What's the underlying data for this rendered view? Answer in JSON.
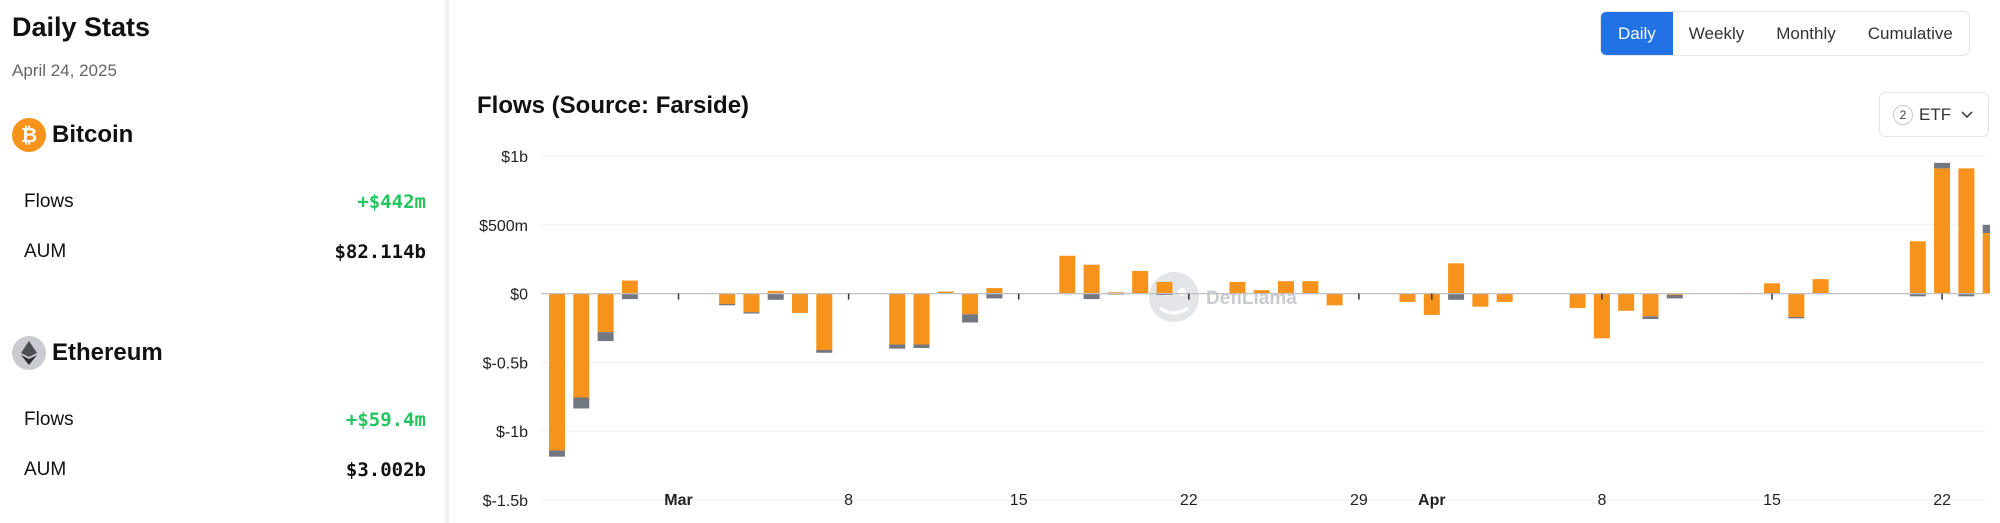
{
  "summary": {
    "title": "Daily Stats",
    "date": "April 24, 2025",
    "assets": [
      {
        "name": "Bitcoin",
        "icon": "bitcoin-icon",
        "icon_color": "#f7931a",
        "flows_label": "Flows",
        "flows_value": "+$442m",
        "aum_label": "AUM",
        "aum_value": "$82.114b"
      },
      {
        "name": "Ethereum",
        "icon": "ethereum-icon",
        "icon_color": "#8a8d93",
        "flows_label": "Flows",
        "flows_value": "+$59.4m",
        "aum_label": "AUM",
        "aum_value": "$3.002b"
      }
    ]
  },
  "controls": {
    "toggles": [
      "Daily",
      "Weekly",
      "Monthly",
      "Cumulative"
    ],
    "active_toggle": "Daily",
    "etf_filter": {
      "count": "2",
      "label": "ETF"
    }
  },
  "colors": {
    "accent": "#2172e5",
    "bitcoin_series": "#f7931a",
    "ethereum_series": "#727781",
    "positive": "#22c55e"
  },
  "watermark": "DefiLlama",
  "chart_data": {
    "type": "bar",
    "stacked": true,
    "title": "Flows (Source: Farside)",
    "y_unit": "USD millions",
    "ylim": [
      -1500,
      1000
    ],
    "y_ticks": [
      1000,
      500,
      0,
      -500,
      -1000,
      -1500
    ],
    "y_tick_labels": [
      "$1b",
      "$500m",
      "$0",
      "$-0.5b",
      "$-1b",
      "$-1.5b"
    ],
    "x_ticks": [
      {
        "date": "2025-03-01",
        "label": "Mar",
        "bold": true
      },
      {
        "date": "2025-03-08",
        "label": "8",
        "bold": false
      },
      {
        "date": "2025-03-15",
        "label": "15",
        "bold": false
      },
      {
        "date": "2025-03-22",
        "label": "22",
        "bold": false
      },
      {
        "date": "2025-03-29",
        "label": "29",
        "bold": false
      },
      {
        "date": "2025-04-01",
        "label": "Apr",
        "bold": true
      },
      {
        "date": "2025-04-08",
        "label": "8",
        "bold": false
      },
      {
        "date": "2025-04-15",
        "label": "15",
        "bold": false
      },
      {
        "date": "2025-04-22",
        "label": "22",
        "bold": false
      }
    ],
    "x": [
      "2025-02-24",
      "2025-02-25",
      "2025-02-26",
      "2025-02-27",
      "2025-03-03",
      "2025-03-04",
      "2025-03-05",
      "2025-03-06",
      "2025-03-07",
      "2025-03-10",
      "2025-03-11",
      "2025-03-12",
      "2025-03-13",
      "2025-03-14",
      "2025-03-17",
      "2025-03-18",
      "2025-03-19",
      "2025-03-20",
      "2025-03-21",
      "2025-03-24",
      "2025-03-25",
      "2025-03-26",
      "2025-03-27",
      "2025-03-28",
      "2025-03-31",
      "2025-04-01",
      "2025-04-02",
      "2025-04-03",
      "2025-04-04",
      "2025-04-07",
      "2025-04-08",
      "2025-04-09",
      "2025-04-10",
      "2025-04-11",
      "2025-04-14",
      "2025-04-15",
      "2025-04-16",
      "2025-04-17",
      "2025-04-21",
      "2025-04-22",
      "2025-04-23",
      "2025-04-24"
    ],
    "series": [
      {
        "name": "Bitcoin",
        "color": "#f7931a",
        "values": [
          -1140,
          -755,
          -280,
          95,
          -75,
          -135,
          20,
          -140,
          -410,
          -370,
          -370,
          15,
          -150,
          40,
          275,
          210,
          10,
          165,
          85,
          85,
          25,
          90,
          90,
          -85,
          -60,
          -155,
          220,
          -95,
          -60,
          -105,
          -325,
          -125,
          -165,
          -10,
          5,
          75,
          -170,
          105,
          380,
          910,
          910,
          440
        ]
      },
      {
        "name": "Ethereum",
        "color": "#727781",
        "values": [
          -45,
          -80,
          -65,
          -40,
          -10,
          -10,
          -45,
          0,
          -20,
          -30,
          -25,
          0,
          -60,
          -35,
          0,
          -40,
          -5,
          0,
          -10,
          0,
          0,
          0,
          0,
          0,
          0,
          0,
          -45,
          0,
          0,
          0,
          0,
          0,
          -20,
          -25,
          0,
          0,
          -10,
          0,
          -20,
          40,
          -20,
          60
        ]
      }
    ]
  }
}
